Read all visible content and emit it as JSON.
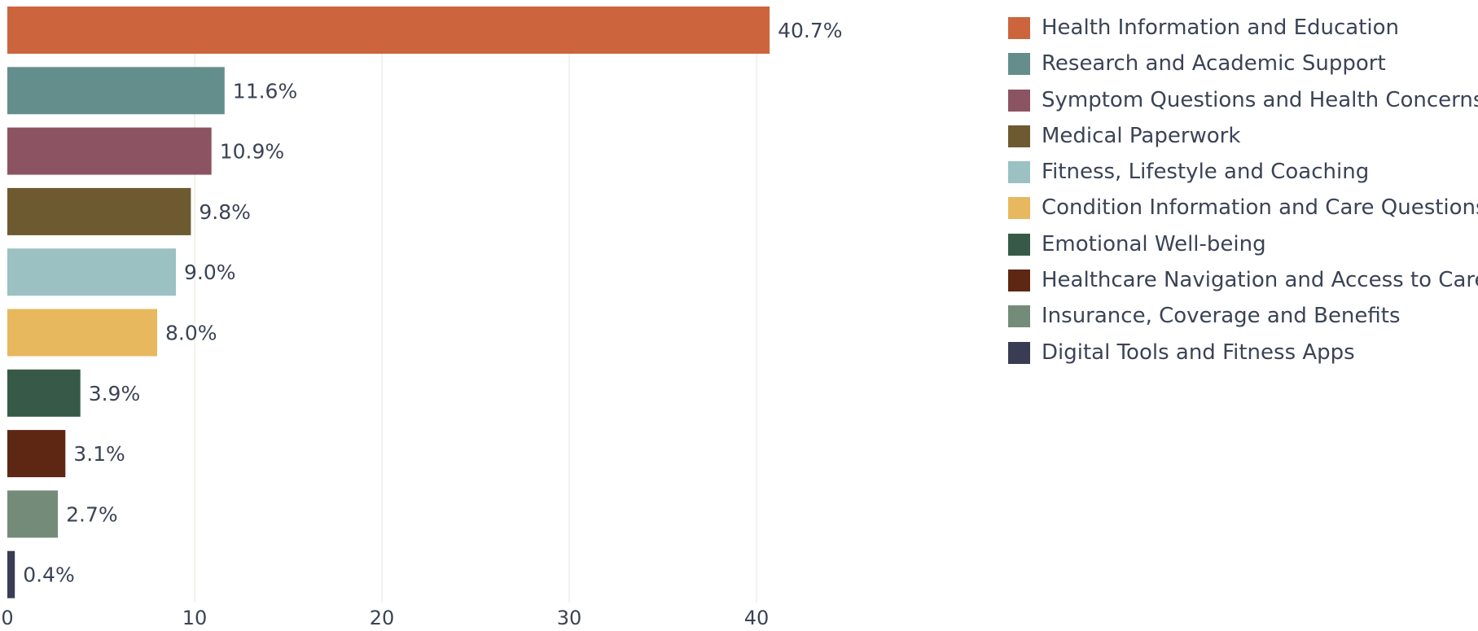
{
  "chart_data": {
    "type": "bar",
    "orientation": "horizontal",
    "categories": [
      "Health Information and Education",
      "Research and Academic Support",
      "Symptom Questions and Health Concerns",
      "Medical Paperwork",
      "Fitness, Lifestyle and Coaching",
      "Condition Information and Care Questions",
      "Emotional Well-being",
      "Healthcare Navigation and Access to Care",
      "Insurance, Coverage and Benefits",
      "Digital Tools and Fitness Apps"
    ],
    "values": [
      40.7,
      11.6,
      10.9,
      9.8,
      9.0,
      8.0,
      3.9,
      3.1,
      2.7,
      0.4
    ],
    "value_labels": [
      "40.7%",
      "11.6%",
      "10.9%",
      "9.8%",
      "9.0%",
      "8.0%",
      "3.9%",
      "3.1%",
      "2.7%",
      "0.4%"
    ],
    "colors": [
      "#cc653d",
      "#648e8c",
      "#8c5462",
      "#6e5a31",
      "#9bc1c2",
      "#e8b85f",
      "#375a48",
      "#5e2714",
      "#758b7a",
      "#3a3c53"
    ],
    "xlim": [
      0,
      46
    ],
    "xticks": [
      0,
      10,
      20,
      30,
      40
    ],
    "xtick_labels": [
      "0",
      "10",
      "20",
      "30",
      "40"
    ],
    "grid": true,
    "legend": {
      "position": "right",
      "items": [
        "Health Information and Education",
        "Research and Academic Support",
        "Symptom Questions and Health Concerns",
        "Medical Paperwork",
        "Fitness, Lifestyle and Coaching",
        "Condition Information and Care Questions",
        "Emotional Well-being",
        "Healthcare Navigation and Access to Care",
        "Insurance, Coverage and Benefits",
        "Digital Tools and Fitness Apps"
      ]
    },
    "title": "",
    "xlabel": "",
    "ylabel": ""
  }
}
